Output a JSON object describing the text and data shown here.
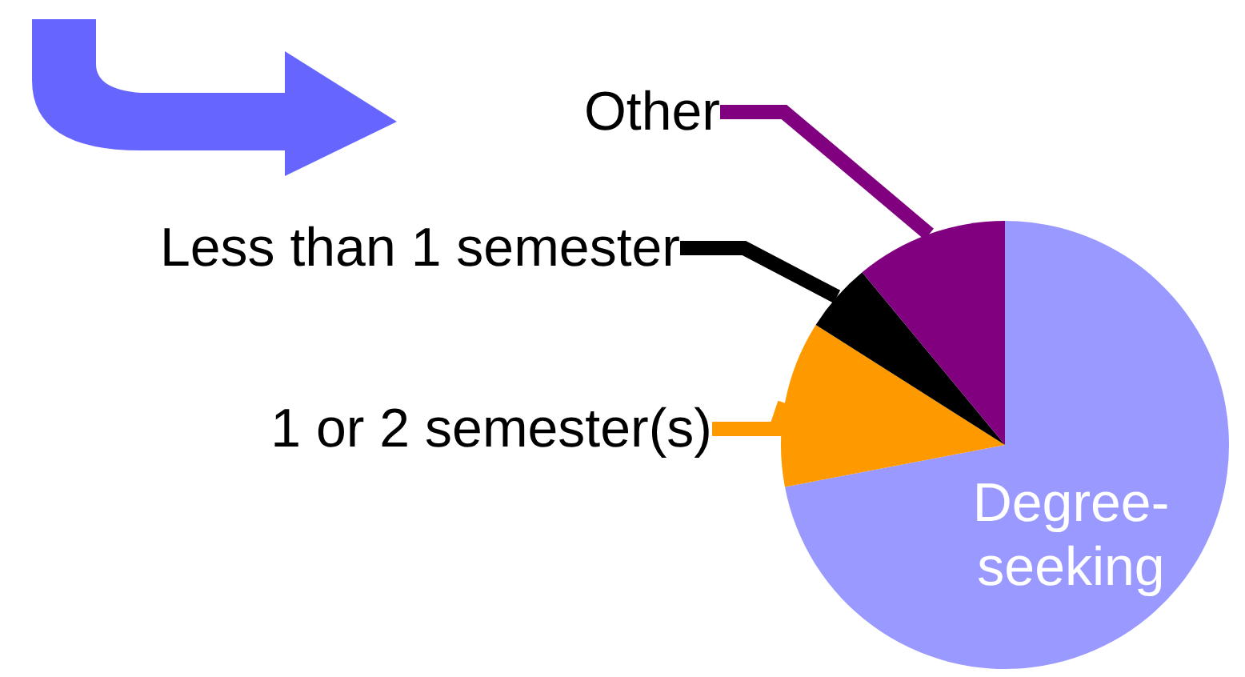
{
  "chart_data": {
    "type": "pie",
    "categories": [
      "Degree-seeking",
      "1 or 2 semester(s)",
      "Less than 1 semester",
      "Other"
    ],
    "values": [
      72,
      12,
      5,
      11
    ],
    "colors": [
      "#9999ff",
      "#ff9900",
      "#000000",
      "#800080"
    ]
  }
}
